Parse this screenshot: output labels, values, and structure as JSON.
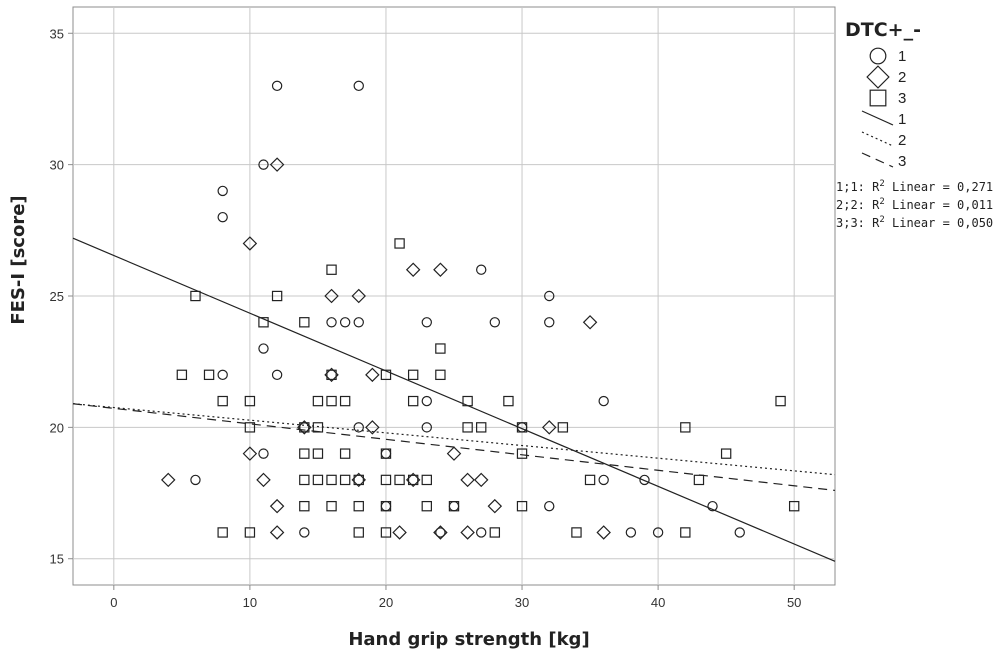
{
  "chart_data": {
    "type": "scatter",
    "xlabel": "Hand grip strength [kg]",
    "ylabel": "FES-I [score]",
    "xlim": [
      -3,
      53
    ],
    "ylim": [
      14,
      36
    ],
    "xticks": [
      0,
      10,
      20,
      30,
      40,
      50
    ],
    "yticks": [
      15,
      20,
      25,
      30,
      35
    ],
    "grid": true,
    "legend_placement": "right",
    "legend_title": "DTC+_-",
    "series": [
      {
        "name": "1",
        "marker": "circle",
        "points": [
          [
            6,
            18
          ],
          [
            8,
            22
          ],
          [
            8,
            29
          ],
          [
            8,
            28
          ],
          [
            11,
            30
          ],
          [
            11,
            23
          ],
          [
            11,
            19
          ],
          [
            12,
            33
          ],
          [
            12,
            22
          ],
          [
            14,
            20
          ],
          [
            14,
            16
          ],
          [
            16,
            24
          ],
          [
            17,
            24
          ],
          [
            18,
            33
          ],
          [
            18,
            24
          ],
          [
            18,
            20
          ],
          [
            20,
            19
          ],
          [
            20,
            17
          ],
          [
            23,
            24
          ],
          [
            23,
            20
          ],
          [
            23,
            21
          ],
          [
            24,
            16
          ],
          [
            25,
            17
          ],
          [
            27,
            26
          ],
          [
            27,
            16
          ],
          [
            28,
            24
          ],
          [
            30,
            20
          ],
          [
            32,
            25
          ],
          [
            32,
            24
          ],
          [
            32,
            17
          ],
          [
            36,
            21
          ],
          [
            36,
            18
          ],
          [
            38,
            16
          ],
          [
            39,
            18
          ],
          [
            40,
            16
          ],
          [
            44,
            17
          ],
          [
            46,
            16
          ]
        ]
      },
      {
        "name": "2",
        "marker": "diamond",
        "points": [
          [
            4,
            18
          ],
          [
            10,
            27
          ],
          [
            10,
            19
          ],
          [
            11,
            18
          ],
          [
            12,
            30
          ],
          [
            12,
            17
          ],
          [
            12,
            16
          ],
          [
            14,
            20
          ],
          [
            16,
            25
          ],
          [
            16,
            22
          ],
          [
            18,
            25
          ],
          [
            18,
            18
          ],
          [
            19,
            22
          ],
          [
            19,
            20
          ],
          [
            21,
            16
          ],
          [
            22,
            26
          ],
          [
            22,
            18
          ],
          [
            24,
            26
          ],
          [
            24,
            16
          ],
          [
            25,
            19
          ],
          [
            26,
            18
          ],
          [
            26,
            16
          ],
          [
            27,
            18
          ],
          [
            28,
            17
          ],
          [
            32,
            20
          ],
          [
            35,
            24
          ],
          [
            36,
            16
          ]
        ]
      },
      {
        "name": "3",
        "marker": "square",
        "points": [
          [
            5,
            22
          ],
          [
            6,
            25
          ],
          [
            7,
            22
          ],
          [
            8,
            21
          ],
          [
            8,
            16
          ],
          [
            10,
            21
          ],
          [
            10,
            20
          ],
          [
            10,
            16
          ],
          [
            11,
            24
          ],
          [
            12,
            25
          ],
          [
            14,
            24
          ],
          [
            14,
            20
          ],
          [
            14,
            19
          ],
          [
            14,
            18
          ],
          [
            14,
            17
          ],
          [
            15,
            21
          ],
          [
            15,
            20
          ],
          [
            15,
            19
          ],
          [
            15,
            18
          ],
          [
            16,
            26
          ],
          [
            16,
            22
          ],
          [
            16,
            21
          ],
          [
            16,
            18
          ],
          [
            16,
            17
          ],
          [
            17,
            21
          ],
          [
            17,
            18
          ],
          [
            17,
            19
          ],
          [
            18,
            18
          ],
          [
            18,
            17
          ],
          [
            18,
            16
          ],
          [
            20,
            22
          ],
          [
            20,
            19
          ],
          [
            20,
            18
          ],
          [
            20,
            17
          ],
          [
            20,
            16
          ],
          [
            21,
            27
          ],
          [
            21,
            18
          ],
          [
            22,
            22
          ],
          [
            22,
            21
          ],
          [
            22,
            18
          ],
          [
            23,
            18
          ],
          [
            23,
            17
          ],
          [
            24,
            23
          ],
          [
            24,
            22
          ],
          [
            25,
            17
          ],
          [
            26,
            21
          ],
          [
            26,
            20
          ],
          [
            27,
            20
          ],
          [
            28,
            16
          ],
          [
            29,
            21
          ],
          [
            30,
            20
          ],
          [
            30,
            19
          ],
          [
            30,
            17
          ],
          [
            33,
            20
          ],
          [
            34,
            16
          ],
          [
            35,
            18
          ],
          [
            42,
            20
          ],
          [
            42,
            16
          ],
          [
            43,
            18
          ],
          [
            45,
            19
          ],
          [
            49,
            21
          ],
          [
            50,
            17
          ]
        ]
      }
    ],
    "fit_lines": [
      {
        "name": "1",
        "style": "solid",
        "x": [
          -3,
          53
        ],
        "y": [
          27.2,
          14.9
        ]
      },
      {
        "name": "2",
        "style": "dotted",
        "x": [
          -3,
          53
        ],
        "y": [
          20.9,
          18.2
        ]
      },
      {
        "name": "3",
        "style": "dashed",
        "x": [
          -3,
          53
        ],
        "y": [
          20.9,
          17.6
        ]
      }
    ],
    "fit_annotations": [
      {
        "prefix": "1;1: R",
        "sup": "2",
        "suffix": " Linear = 0,271"
      },
      {
        "prefix": "2;2: R",
        "sup": "2",
        "suffix": " Linear = 0,011"
      },
      {
        "prefix": "3;3: R",
        "sup": "2",
        "suffix": " Linear = 0,050"
      }
    ],
    "colors": {
      "background": "#ffffff",
      "grid": "#c8c8c8",
      "axis": "#8c8c8c",
      "marks": "#222222"
    }
  }
}
